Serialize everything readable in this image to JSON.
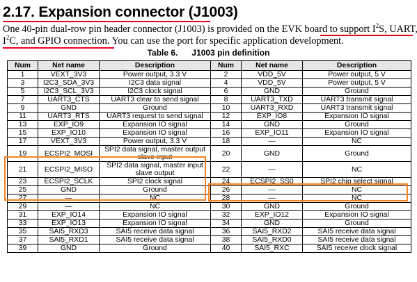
{
  "heading": {
    "number": "2.17.",
    "title": "Expansion connector (J1003)"
  },
  "paragraph": {
    "l1a": "One 40-pin dual-row pin header connector (J1003) is provided on the EVK board to ",
    "l1b": "support I",
    "l1sup": "2",
    "l1c": "S, UART,",
    "l2a": "I",
    "l2sup": "2",
    "l2b": "C, and GPIO connection",
    "l2c": ". You can use the port for specific application development."
  },
  "caption": {
    "label": "Table 6.",
    "title": "J1003 pin definition"
  },
  "table": {
    "headers": [
      "Num",
      "Net name",
      "Description",
      "Num",
      "Net name",
      "Description"
    ],
    "rows": [
      [
        "1",
        "VEXT_3V3",
        "Power output, 3.3 V",
        "2",
        "VDD_5V",
        "Power output, 5 V"
      ],
      [
        "3",
        "I2C3_SDA_3V3",
        "I2C3 data signal",
        "4",
        "VDD_5V",
        "Power output, 5 V"
      ],
      [
        "5",
        "I2C3_SCL_3V3",
        "I2C3 clock signal",
        "6",
        "GND",
        "Ground"
      ],
      [
        "7",
        "UART3_CTS",
        "UART3 clear to send signal",
        "8",
        "UART3_TXD",
        "UART3 transmit signal"
      ],
      [
        "9",
        "GND",
        "Ground",
        "10",
        "UART3_RXD",
        "UART3 transmit signal"
      ],
      [
        "11",
        "UART3_RTS",
        "UART3 request to send signal",
        "12",
        "EXP_IO8",
        "Expansion IO signal"
      ],
      [
        "13",
        "EXP_IO9",
        "Expansion IO signal",
        "14",
        "GND",
        "Ground"
      ],
      [
        "15",
        "EXP_IO10",
        "Expansion IO signal",
        "16",
        "EXP_IO11",
        "Expansion IO signal"
      ],
      [
        "17",
        "VEXT_3V3",
        "Power output, 3.3 V",
        "18",
        "—",
        "NC"
      ],
      [
        "19",
        "ECSPI2_MOSI",
        "SPI2 data signal, master output slave input",
        "20",
        "GND",
        "Ground"
      ],
      [
        "21",
        "ECSPI2_MISO",
        "SPI2 data signal, master input slave output",
        "22",
        "—",
        "NC"
      ],
      [
        "23",
        "ECSPI2_SCLK",
        "SPI2 clock signal",
        "24",
        "ECSPI2_SS0",
        "SPI2 chip select signal"
      ],
      [
        "25",
        "GND",
        "Ground",
        "26",
        "—",
        "NC"
      ],
      [
        "27",
        "—",
        "NC",
        "28",
        "—",
        "NC"
      ],
      [
        "29",
        "—",
        "NC",
        "30",
        "GND",
        "Ground"
      ],
      [
        "31",
        "EXP_IO14",
        "Expansion IO signal",
        "32",
        "EXP_IO12",
        "Expansion IO signal"
      ],
      [
        "33",
        "EXP_IO13",
        "Expansion IO signal",
        "34",
        "GND",
        "Ground"
      ],
      [
        "35",
        "SAI5_RXD3",
        "SAI5 receive data signal",
        "36",
        "SAI5_RXD2",
        "SAI5 receive data signal"
      ],
      [
        "37",
        "SAI5_RXD1",
        "SAI5 receive data signal",
        "38",
        "SAI5_RXD0",
        "SAI5 receive data signal"
      ],
      [
        "39",
        "GND",
        "Ground",
        "40",
        "SAI5_RXC",
        "SAI5 receive clock signal"
      ]
    ]
  },
  "colors": {
    "underline": "#e8001c",
    "highlight_box": "#f58220",
    "header_bg": "#e6e6e6"
  }
}
